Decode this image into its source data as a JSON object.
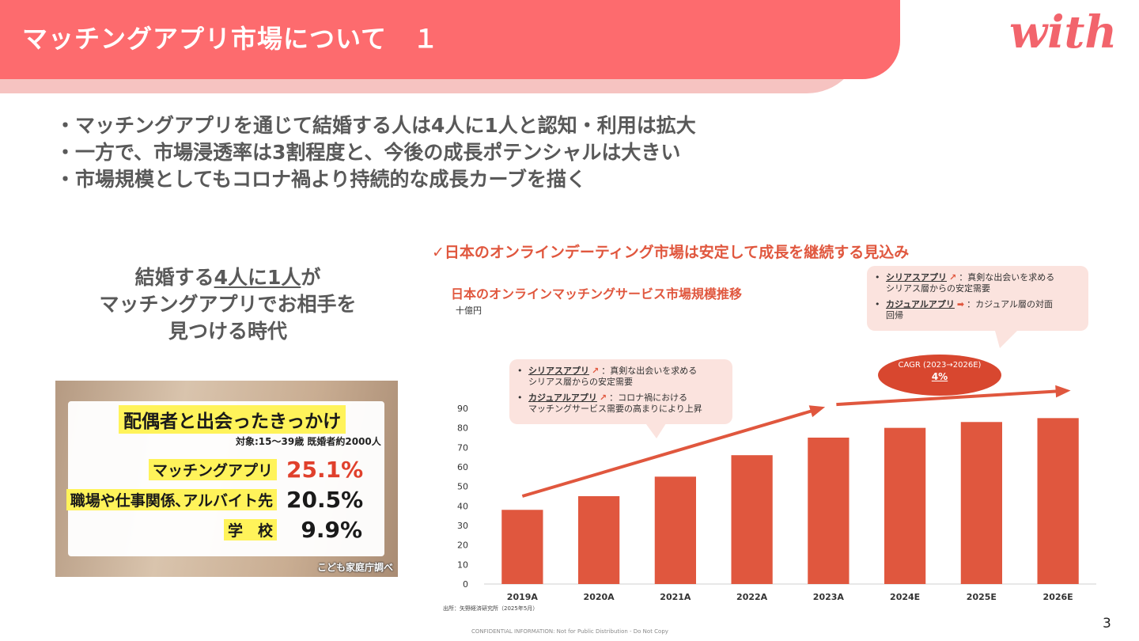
{
  "header": {
    "title": "マッチングアプリ市場について　１",
    "logo": "with"
  },
  "bullets": [
    "・マッチングアプリを通じて結婚する人は4人に1人と認知・利用は拡大",
    "・一方で、市場浸透率は3割程度と、今後の成長ポテンシャルは大きい",
    "・市場規模としてもコロナ禍より持続的な成長カーブを描く"
  ],
  "caption": {
    "line1_pre": "結婚する",
    "line1_u": "4人に1人",
    "line1_post": "が",
    "line2": "マッチングアプリでお相手を",
    "line3": "見つける時代"
  },
  "survey": {
    "title": "配偶者と出会ったきっかけ",
    "subtitle": "対象:15～39歳 既婚者約2000人",
    "rows": [
      {
        "label": "マッチングアプリ",
        "value": "25.1%"
      },
      {
        "label": "職場や仕事関係､アルバイト先",
        "value": "20.5%"
      },
      {
        "label": "学　校",
        "value": "9.9%"
      }
    ],
    "source": "こども家庭庁調べ"
  },
  "chart_panel": {
    "headline": "✓日本のオンラインデーティング市場は安定して成長を継続する見込み",
    "callout_left": {
      "item1_key": "シリアスアプリ",
      "item1_arrow": "↗",
      "item1_text": "：真剣な出会いを求める",
      "item1_text2": "シリアス層からの安定需要",
      "item2_key": "カジュアルアプリ",
      "item2_arrow": "↗",
      "item2_text": "：コロナ禍における",
      "item2_text2": "マッチングサービス需要の高まりにより上昇"
    },
    "callout_right": {
      "item1_key": "シリアスアプリ",
      "item1_arrow": "↗",
      "item1_text": "：真剣な出会いを求める",
      "item1_text2": "シリアス層からの安定需要",
      "item2_key": "カジュアルアプリ",
      "item2_arrow": "➡",
      "item2_text": "：カジュアル層の対面",
      "item2_text2": "回帰"
    },
    "cagr_label": "CAGR (2023→2026E)",
    "cagr_value": "4%",
    "source": "出所：矢野経済研究所（2025年5月）"
  },
  "chart_data": {
    "type": "bar",
    "title": "日本のオンラインマッチングサービス市場規模推移",
    "ylabel": "十億円",
    "xlabel": "",
    "categories": [
      "2019A",
      "2020A",
      "2021A",
      "2022A",
      "2023A",
      "2024E",
      "2025E",
      "2026E"
    ],
    "values": [
      38,
      45,
      55,
      66,
      75,
      80,
      83,
      85
    ],
    "ylim": [
      0,
      90
    ],
    "yticks": [
      0,
      10,
      20,
      30,
      40,
      50,
      60,
      70,
      80,
      90
    ],
    "grid": false,
    "color": "#e0573e"
  },
  "footer": {
    "confidential": "CONFIDENTIAL INFORMATION: Not for Public Distribution - Do Not Copy",
    "page": "3"
  },
  "colors": {
    "header": "#fd6b6e",
    "header_shadow": "#f6c3c1",
    "accent": "#e0573e",
    "highlight": "#fff35a"
  }
}
